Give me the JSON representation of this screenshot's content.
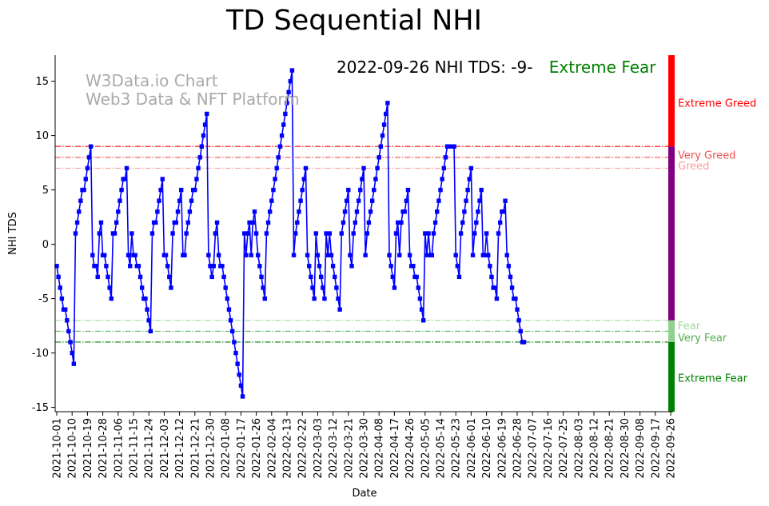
{
  "chart_data": {
    "type": "line",
    "title": "TD Sequential NHI",
    "subtitle_prefix": "2022-09-26 NHI TDS: -9-",
    "subtitle_status": "Extreme Fear",
    "subtitle_status_color": "#008000",
    "watermark": [
      "W3Data.io Chart",
      "Web3 Data & NFT Platform"
    ],
    "xlabel": "Date",
    "ylabel": "NHI TDS",
    "ylim": [
      -15.4,
      17.4
    ],
    "yticks": [
      -15,
      -10,
      -5,
      0,
      5,
      10,
      15
    ],
    "x_start": "2021-10-01",
    "x_end": "2022-09-26",
    "xticks": [
      "2021-10-01",
      "2021-10-10",
      "2021-10-19",
      "2021-10-28",
      "2021-11-06",
      "2021-11-15",
      "2021-11-24",
      "2021-12-03",
      "2021-12-12",
      "2021-12-21",
      "2021-12-30",
      "2022-01-08",
      "2022-01-17",
      "2022-01-26",
      "2022-02-04",
      "2022-02-13",
      "2022-02-22",
      "2022-03-03",
      "2022-03-12",
      "2022-03-21",
      "2022-03-30",
      "2022-04-08",
      "2022-04-17",
      "2022-04-26",
      "2022-05-05",
      "2022-05-14",
      "2022-05-23",
      "2022-06-01",
      "2022-06-10",
      "2022-06-19",
      "2022-06-28",
      "2022-07-07",
      "2022-07-16",
      "2022-07-25",
      "2022-08-03",
      "2022-08-12",
      "2022-08-21",
      "2022-08-30",
      "2022-09-08",
      "2022-09-17",
      "2022-09-26"
    ],
    "grid": false,
    "series_color": "#0000ff",
    "thresholds": [
      {
        "label": "Extreme Greed",
        "y": 9,
        "color": "#ff0000",
        "label_y": 13
      },
      {
        "label": "Very Greed",
        "y": 8,
        "color": "#f05050",
        "label_y": 8.2
      },
      {
        "label": "Greed",
        "y": 7,
        "color": "#f4a0a0",
        "label_y": 7.2
      },
      {
        "label": "Fear",
        "y": -7,
        "color": "#a0d8a0",
        "label_y": -7.5
      },
      {
        "label": "Very Fear",
        "y": -8,
        "color": "#50b050",
        "label_y": -8.6
      },
      {
        "label": "Extreme Fear",
        "y": -9,
        "color": "#008000",
        "label_y": -12.3
      }
    ],
    "side_bar": [
      {
        "from": 9,
        "to": 17.4,
        "color": "#ff0000"
      },
      {
        "from": -7,
        "to": 9,
        "color": "#800080"
      },
      {
        "from": -9,
        "to": -7,
        "color": "#90d090"
      },
      {
        "from": -15.4,
        "to": -9,
        "color": "#008000"
      }
    ],
    "values": [
      -2,
      -3,
      -4,
      -5,
      -6,
      -6,
      -7,
      -8,
      -9,
      -10,
      -11,
      1,
      2,
      3,
      4,
      5,
      5,
      6,
      7,
      8,
      9,
      -1,
      -2,
      -2,
      -3,
      1,
      2,
      -1,
      -1,
      -2,
      -3,
      -4,
      -5,
      1,
      1,
      2,
      3,
      4,
      5,
      6,
      6,
      7,
      -1,
      -2,
      1,
      -1,
      -1,
      -2,
      -2,
      -3,
      -4,
      -5,
      -5,
      -6,
      -7,
      -8,
      1,
      2,
      2,
      3,
      4,
      5,
      6,
      -1,
      -1,
      -2,
      -3,
      -4,
      1,
      2,
      2,
      3,
      4,
      5,
      -1,
      -1,
      1,
      2,
      3,
      4,
      5,
      5,
      6,
      7,
      8,
      9,
      10,
      11,
      12,
      -1,
      -2,
      -3,
      -2,
      1,
      2,
      -1,
      -2,
      -2,
      -3,
      -4,
      -5,
      -6,
      -7,
      -8,
      -9,
      -10,
      -11,
      -12,
      -13,
      -14,
      1,
      -1,
      1,
      2,
      -1,
      2,
      3,
      1,
      -1,
      -2,
      -3,
      -4,
      -5,
      1,
      2,
      3,
      4,
      5,
      6,
      7,
      8,
      9,
      10,
      11,
      12,
      13,
      14,
      15,
      16,
      -1,
      1,
      2,
      3,
      4,
      5,
      6,
      7,
      -1,
      -2,
      -3,
      -4,
      -5,
      1,
      -1,
      -2,
      -3,
      -4,
      -5,
      1,
      -1,
      1,
      -1,
      -2,
      -3,
      -4,
      -5,
      -6,
      1,
      2,
      3,
      4,
      5,
      -1,
      -2,
      1,
      2,
      3,
      4,
      5,
      6,
      7,
      -1,
      1,
      2,
      3,
      4,
      5,
      6,
      7,
      8,
      9,
      10,
      11,
      12,
      13,
      -1,
      -2,
      -3,
      -4,
      1,
      2,
      -1,
      2,
      3,
      3,
      4,
      5,
      -1,
      -2,
      -2,
      -3,
      -3,
      -4,
      -5,
      -6,
      -7,
      1,
      -1,
      1,
      -1,
      -1,
      1,
      2,
      3,
      4,
      5,
      6,
      7,
      8,
      9,
      9,
      9,
      9,
      9,
      -1,
      -2,
      -3,
      1,
      2,
      3,
      4,
      5,
      6,
      7,
      -1,
      1,
      2,
      3,
      4,
      5,
      -1,
      -1,
      1,
      -1,
      -2,
      -3,
      -4,
      -4,
      -5,
      1,
      2,
      3,
      3,
      4,
      -1,
      -2,
      -3,
      -4,
      -5,
      -5,
      -6,
      -7,
      -8,
      -9,
      -9
    ]
  }
}
